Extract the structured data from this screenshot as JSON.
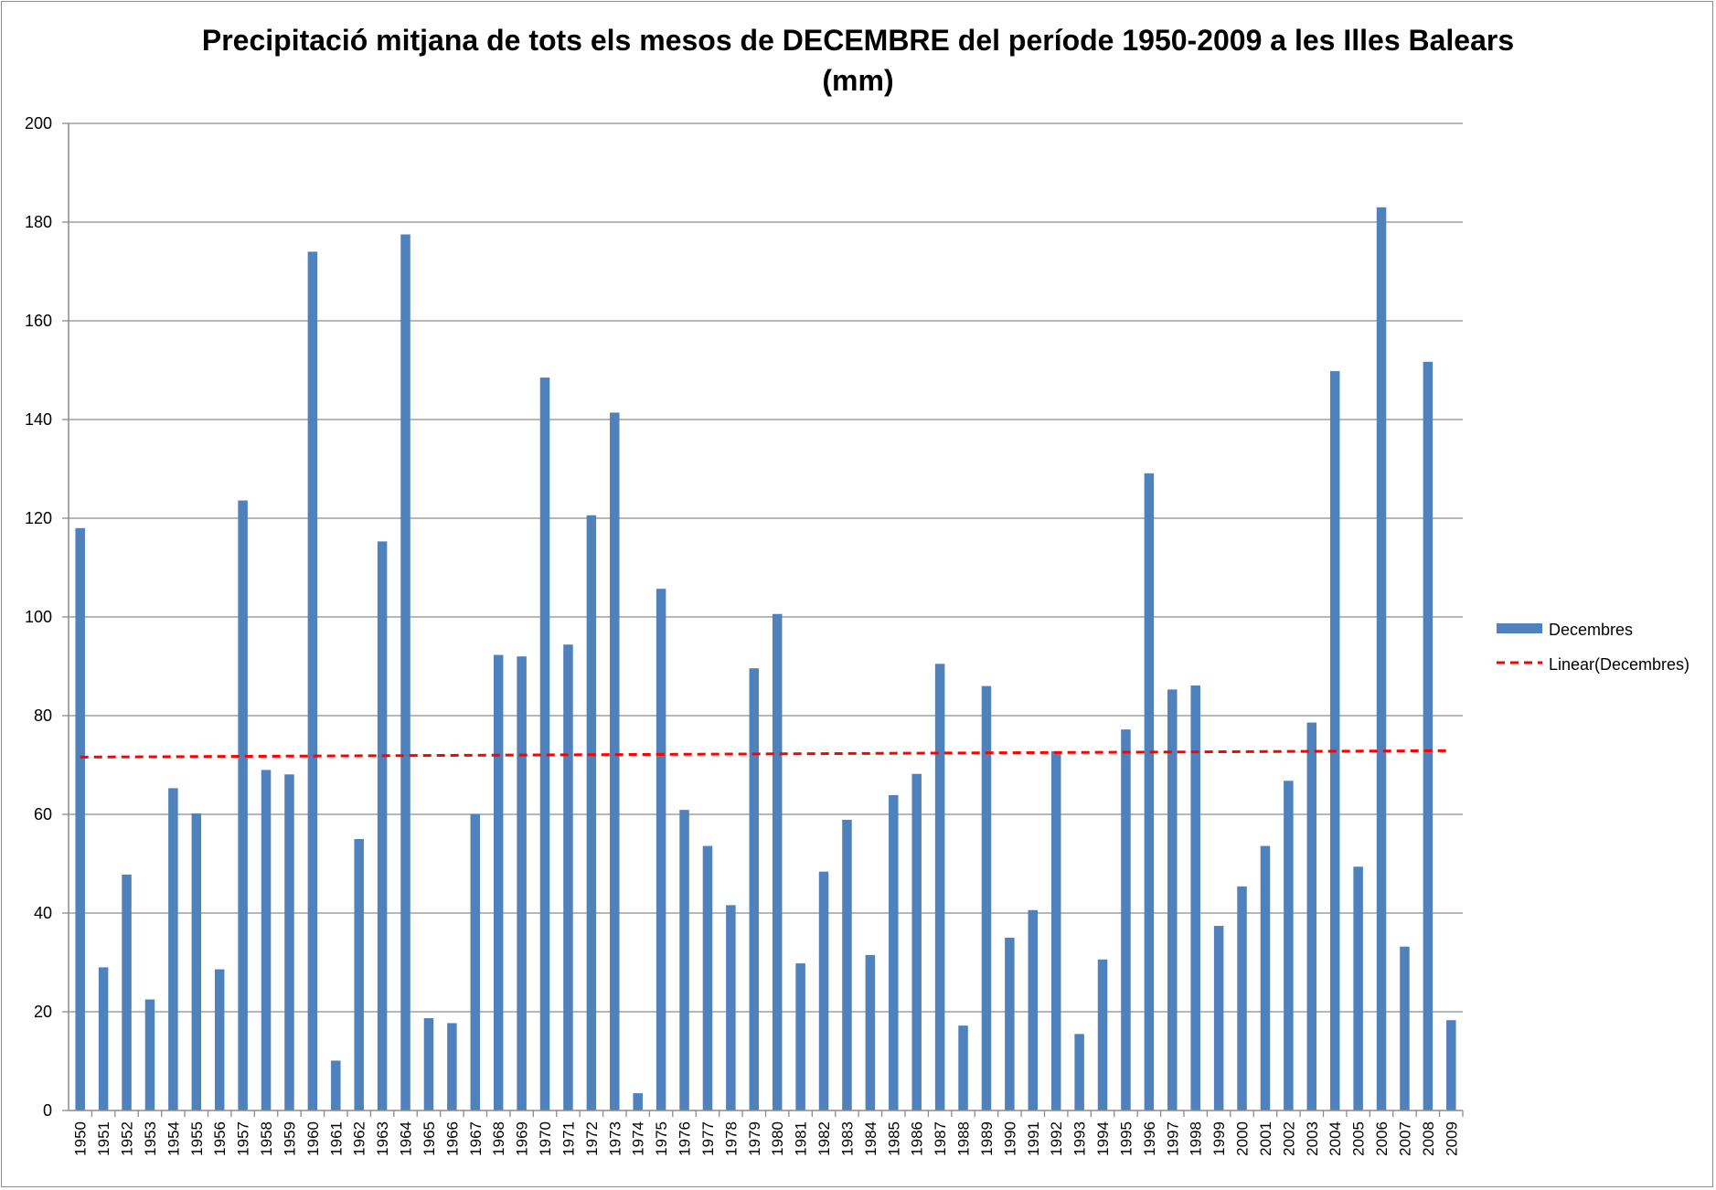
{
  "chart_data": {
    "type": "bar",
    "title_lines": [
      "Precipitació mitjana de tots els mesos de DECEMBRE del període 1950-2009 a les Illes Balears",
      "(mm)"
    ],
    "xlabel": "",
    "ylabel": "",
    "ylim": [
      0,
      200
    ],
    "yticks": [
      "0",
      "20",
      "40",
      "60",
      "80",
      "100",
      "120",
      "140",
      "160",
      "180",
      "200"
    ],
    "grid": true,
    "legend_position": "right",
    "categories": [
      "1950",
      "1951",
      "1952",
      "1953",
      "1954",
      "1955",
      "1956",
      "1957",
      "1958",
      "1959",
      "1960",
      "1961",
      "1962",
      "1963",
      "1964",
      "1965",
      "1966",
      "1967",
      "1968",
      "1969",
      "1970",
      "1971",
      "1972",
      "1973",
      "1974",
      "1975",
      "1976",
      "1977",
      "1978",
      "1979",
      "1980",
      "1981",
      "1982",
      "1983",
      "1984",
      "1985",
      "1986",
      "1987",
      "1988",
      "1989",
      "1990",
      "1991",
      "1992",
      "1993",
      "1994",
      "1995",
      "1996",
      "1997",
      "1998",
      "1999",
      "2000",
      "2001",
      "2002",
      "2003",
      "2004",
      "2005",
      "2006",
      "2007",
      "2008",
      "2009"
    ],
    "series": [
      {
        "name": "Decembres",
        "color": "#4f81bd",
        "values": [
          118,
          29,
          47.8,
          22.5,
          65.3,
          60.2,
          28.6,
          123.6,
          69,
          68.1,
          174,
          10.1,
          55,
          115.3,
          177.5,
          18.7,
          17.7,
          60.1,
          92.3,
          92,
          148.5,
          94.4,
          120.6,
          141.4,
          3.5,
          105.7,
          60.9,
          53.6,
          41.6,
          89.6,
          100.6,
          29.8,
          48.4,
          58.9,
          31.5,
          63.9,
          68.2,
          90.5,
          17.2,
          86,
          35,
          40.6,
          72.8,
          15.5,
          30.6,
          77.2,
          129.1,
          85.3,
          86.1,
          37.4,
          45.4,
          53.6,
          66.8,
          78.6,
          149.8,
          49.4,
          183,
          33.2,
          151.7,
          18.3
        ]
      },
      {
        "name": "Linear(Decembres)",
        "color": "#ff0000",
        "kind": "trendline",
        "start_value": 71.6,
        "end_value": 72.9
      }
    ]
  }
}
